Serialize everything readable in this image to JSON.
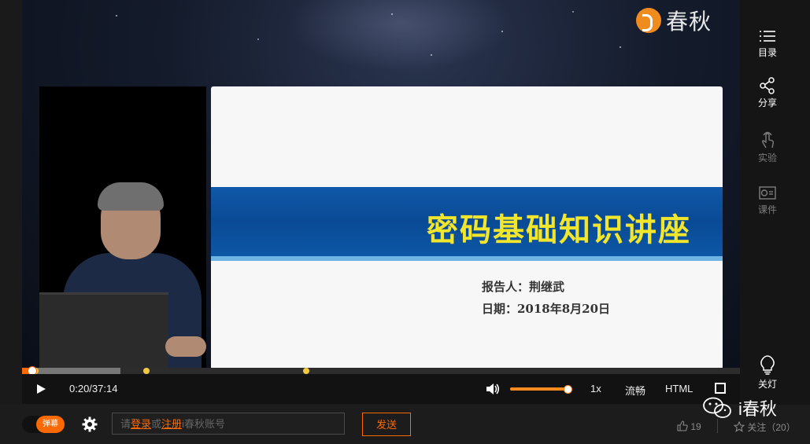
{
  "brand": {
    "logo_text": "春秋",
    "icon": "chunqiu-logo-icon"
  },
  "slide": {
    "title": "密码基础知识讲座",
    "reporter": "报告人：荆继武",
    "date": "日期：2018年8月20日"
  },
  "player": {
    "time": "0:20/37:14",
    "progress_played": 0.009,
    "progress_buffered": 0.137,
    "chapter_markers": [
      0.014,
      0.169,
      0.391
    ],
    "volume": 0.98,
    "speed_label": "1x",
    "quality_label": "流畅",
    "mode_label": "HTML"
  },
  "sidebar": {
    "items": [
      {
        "label": "目录",
        "icon": "list-icon",
        "state": "active"
      },
      {
        "label": "分享",
        "icon": "share-icon",
        "state": "active"
      },
      {
        "label": "实验",
        "icon": "touch-icon",
        "state": "dim"
      },
      {
        "label": "课件",
        "icon": "courseware-icon",
        "state": "dim"
      },
      {
        "label": "关灯",
        "icon": "lightbulb-icon",
        "state": "active"
      }
    ]
  },
  "bottom": {
    "danmu_label": "弹幕",
    "comment_prefix": "请",
    "login_link": "登录",
    "or_text": "或",
    "register_link": "注册",
    "comment_suffix": "i春秋账号",
    "send_label": "发送",
    "like_count": "19",
    "follow_label": "关注（20）",
    "watermark_text": "i春秋"
  }
}
